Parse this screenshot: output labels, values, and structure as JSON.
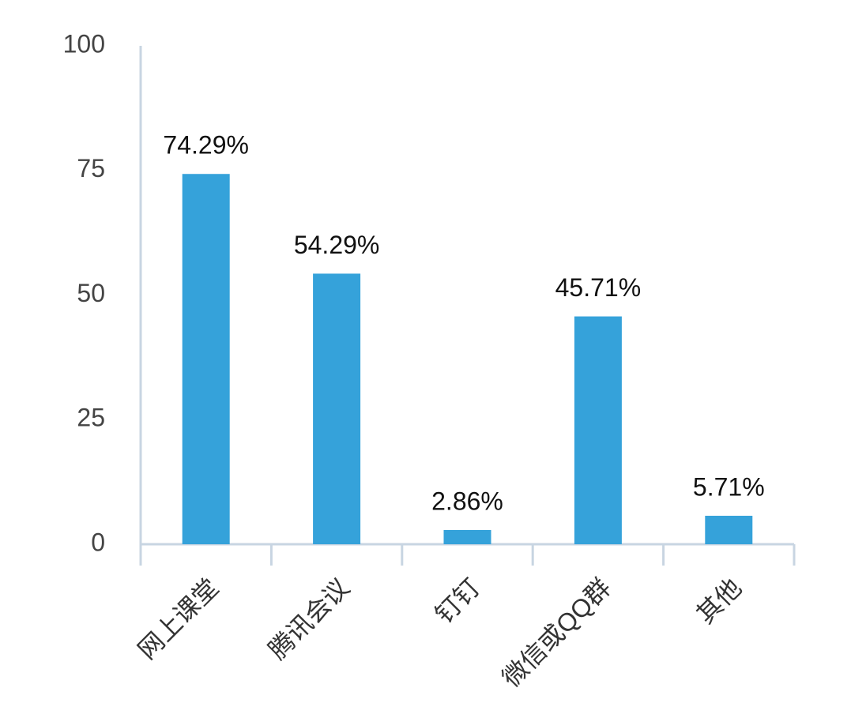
{
  "chart_data": {
    "type": "bar",
    "categories": [
      "网上课堂",
      "腾讯会议",
      "钉钉",
      "微信或QQ群",
      "其他"
    ],
    "values": [
      74.29,
      54.29,
      2.86,
      45.71,
      5.71
    ],
    "value_labels": [
      "74.29%",
      "54.29%",
      "2.86%",
      "45.71%",
      "5.71%"
    ],
    "color": "#35a2da",
    "ylim": [
      0,
      100
    ],
    "yticks": [
      0,
      25,
      50,
      75,
      100
    ],
    "grid": false
  }
}
